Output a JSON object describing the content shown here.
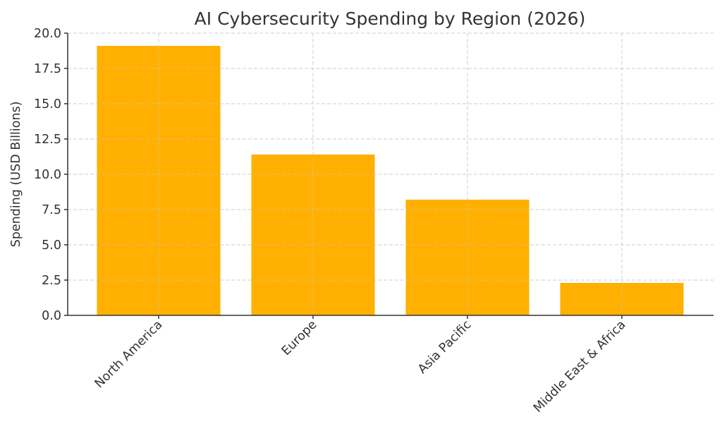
{
  "chart_data": {
    "type": "bar",
    "title": "AI Cybersecurity Spending by Region (2026)",
    "xlabel": "",
    "ylabel": "Spending (USD Billions)",
    "categories": [
      "North America",
      "Europe",
      "Asia Pacific",
      "Middle East & Africa"
    ],
    "values": [
      19.1,
      11.4,
      8.2,
      2.3
    ],
    "ylim": [
      0,
      20
    ],
    "yticks": [
      "0.0",
      "2.5",
      "5.0",
      "7.5",
      "10.0",
      "12.5",
      "15.0",
      "17.5",
      "20.0"
    ],
    "grid": true,
    "legend": null,
    "bar_color": "#ffb000",
    "xtick_rotation": -45
  }
}
